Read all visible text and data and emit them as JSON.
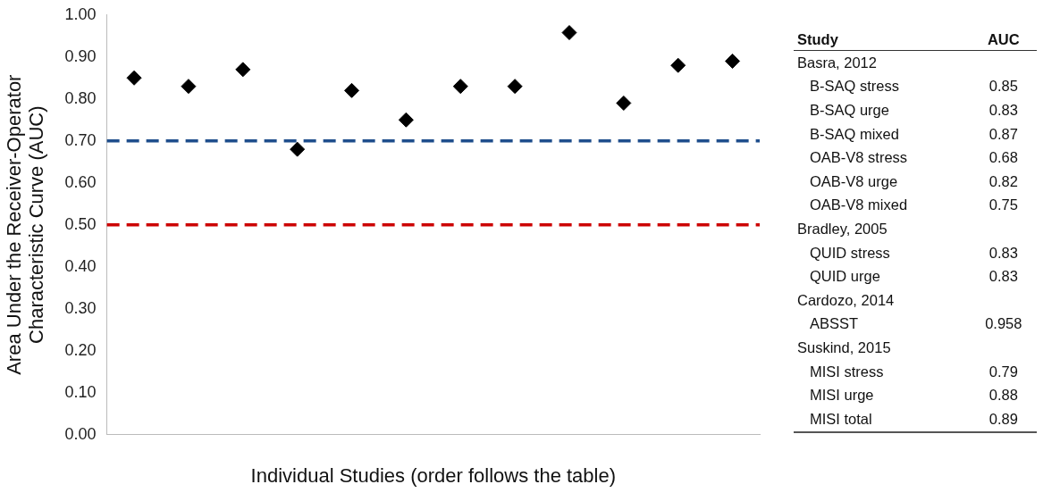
{
  "chart_data": [
    {
      "type": "scatter",
      "xlabel": "Individual Studies (order follows the table)",
      "ylabel": "Area Under the Receiver-Operator Characteristic Curve (AUC)",
      "categories": [
        null,
        null,
        null,
        null,
        null,
        null,
        null,
        null,
        null,
        null,
        null,
        null
      ],
      "values": [
        0.85,
        0.83,
        0.87,
        0.68,
        0.82,
        0.75,
        0.83,
        0.83,
        0.958,
        0.79,
        0.88,
        0.89
      ],
      "color": "#000000",
      "marker": "diamond",
      "tick_labels": "y",
      "ylim": [
        0,
        1
      ],
      "yticks": [
        {
          "value": 0,
          "label": "0.00"
        },
        {
          "value": 0.1,
          "label": "0.10"
        },
        {
          "value": 0.2,
          "label": "0.20"
        },
        {
          "value": 0.3,
          "label": "0.30"
        },
        {
          "value": 0.4,
          "label": "0.40"
        },
        {
          "value": 0.5,
          "label": "0.50"
        },
        {
          "value": 0.6,
          "label": "0.60"
        },
        {
          "value": 0.7,
          "label": "0.70"
        },
        {
          "value": 0.8,
          "label": "0.80"
        },
        {
          "value": 0.9,
          "label": "0.90"
        },
        {
          "value": 1,
          "label": "1.00"
        }
      ],
      "ref_lines": [
        {
          "axis": "y",
          "value": 0.7,
          "color": "#1f4e8c",
          "line_style": "dashed"
        },
        {
          "axis": "y",
          "value": 0.5,
          "color": "#cc0000",
          "line_style": "dashed"
        }
      ]
    },
    {
      "type": "other",
      "annotations": [
        "Study",
        "AUC"
      ],
      "categories": [
        "Basra, 2012",
        "B-SAQ stress",
        "B-SAQ urge",
        "B-SAQ mixed",
        "OAB-V8 stress",
        "OAB-V8 urge",
        "OAB-V8 mixed",
        "Bradley, 2005",
        "QUID stress",
        "QUID urge",
        "Cardozo, 2014",
        "ABSST",
        "Suskind, 2015",
        "MISI stress",
        "MISI urge",
        "MISI total"
      ],
      "value_labels": [
        null,
        "0.85",
        "0.83",
        "0.87",
        "0.68",
        "0.82",
        "0.75",
        null,
        "0.83",
        "0.83",
        null,
        "0.958",
        null,
        "0.79",
        "0.88",
        "0.89"
      ]
    }
  ]
}
